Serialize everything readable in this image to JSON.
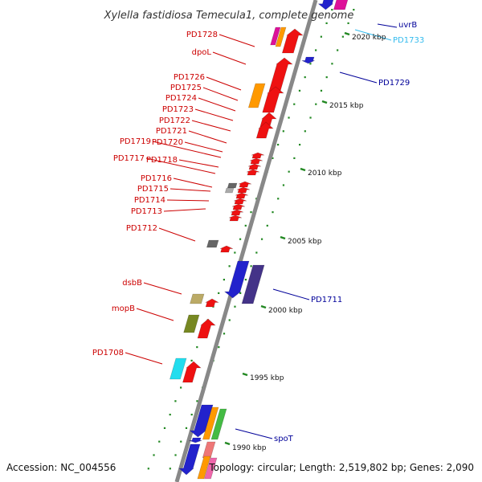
{
  "title": "Xylella fastidiosa Temecula1, complete genome",
  "footer": {
    "accession": "Accession: NC_004556",
    "summary": "Topology: circular; Length: 2,519,802 bp; Genes: 2,090"
  },
  "scale_labels": [
    "2020 kbp",
    "2015 kbp",
    "2010 kbp",
    "2005 kbp",
    "2000 kbp",
    "1995 kbp",
    "1990 kbp"
  ],
  "left_labels": [
    "PD1728",
    "dpoL",
    "PD1726",
    "PD1725",
    "PD1724",
    "PD1723",
    "PD1722",
    "PD1721",
    "PD1720",
    "PD1719",
    "PD1718",
    "PD1717",
    "PD1716",
    "PD1715",
    "PD1714",
    "PD1713",
    "PD1712",
    "dsbB",
    "mopB",
    "PD1708"
  ],
  "right_labels": [
    "uvrB",
    "PD1733",
    "PD1729",
    "PD1711",
    "spoT"
  ],
  "colors": {
    "left_label": "#cc0000",
    "right_label": "#000099",
    "right_label_alt": "#33bbee",
    "gene_red": "#ee1111",
    "gene_blue": "#2222cc",
    "gene_navy": "#443388",
    "gene_orange": "#ff9900",
    "gene_magenta": "#dd1199",
    "gene_olive": "#778822",
    "gene_khaki": "#bbaa66",
    "gene_cyan": "#22ddee",
    "gene_green": "#44bb44",
    "gene_gray": "#666666",
    "backbone": "#888888",
    "tick": "#228822"
  }
}
